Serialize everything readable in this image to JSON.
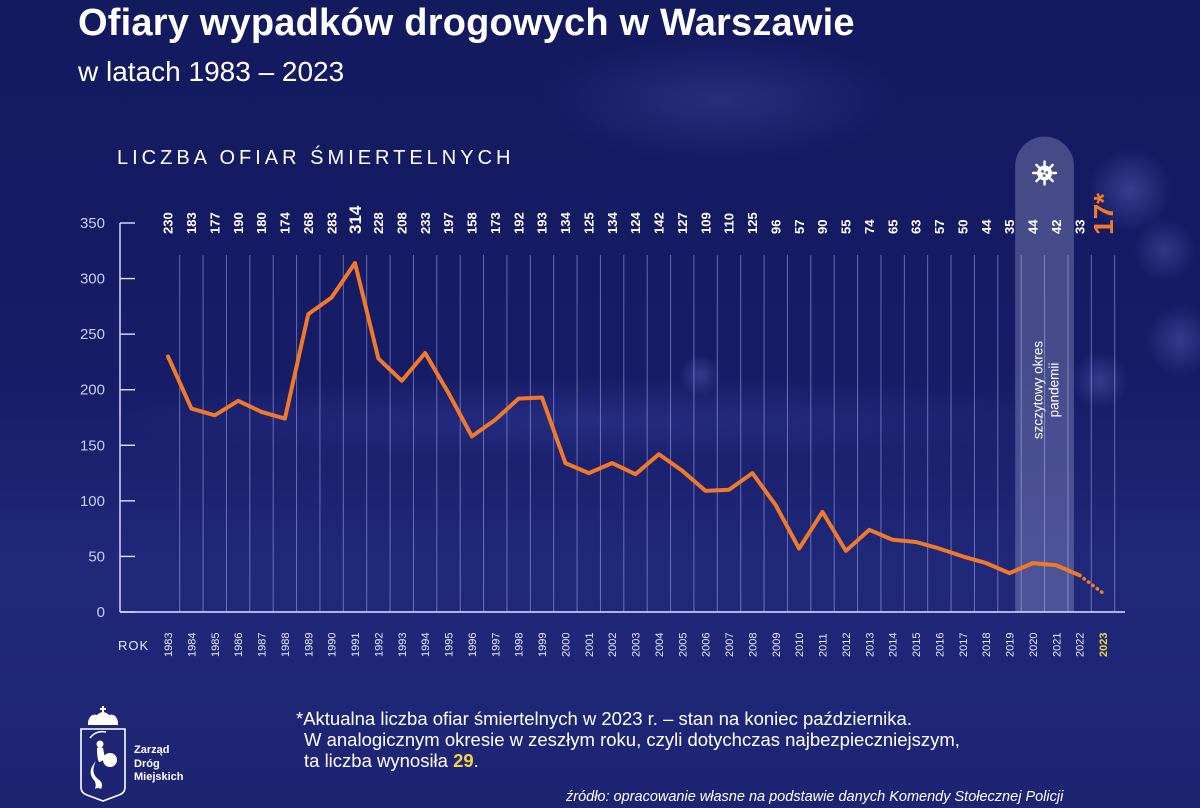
{
  "header": {
    "title": "Ofiary wypadków drogowych w Warszawie",
    "subtitle": "w latach 1983 – 2023"
  },
  "chart_data": {
    "type": "line",
    "title": "Ofiary wypadków drogowych w Warszawie",
    "subtitle": "w latach 1983 – 2023",
    "ylabel": "LICZBA OFIAR ŚMIERTELNYCH",
    "xlabel": "ROK",
    "ylim": [
      0,
      350
    ],
    "yticks": [
      0,
      50,
      100,
      150,
      200,
      250,
      300,
      350
    ],
    "grid": "vertical",
    "series": [
      {
        "name": "Liczba ofiar śmiertelnych",
        "color": "#f07a2a",
        "x": [
          1983,
          1984,
          1985,
          1986,
          1987,
          1988,
          1989,
          1990,
          1991,
          1992,
          1993,
          1994,
          1995,
          1996,
          1997,
          1998,
          1999,
          2000,
          2001,
          2002,
          2003,
          2004,
          2005,
          2006,
          2007,
          2008,
          2009,
          2010,
          2011,
          2012,
          2013,
          2014,
          2015,
          2016,
          2017,
          2018,
          2019,
          2020,
          2021,
          2022,
          2023
        ],
        "values": [
          230,
          183,
          177,
          190,
          180,
          174,
          268,
          283,
          314,
          228,
          208,
          233,
          197,
          158,
          173,
          192,
          193,
          134,
          125,
          134,
          124,
          142,
          127,
          109,
          110,
          125,
          96,
          57,
          90,
          55,
          74,
          65,
          63,
          57,
          50,
          44,
          35,
          44,
          42,
          33,
          17
        ],
        "value_labels": [
          "230",
          "183",
          "177",
          "190",
          "180",
          "174",
          "268",
          "283",
          "314",
          "228",
          "208",
          "233",
          "197",
          "158",
          "173",
          "192",
          "193",
          "134",
          "125",
          "134",
          "124",
          "142",
          "127",
          "109",
          "110",
          "125",
          "96",
          "57",
          "90",
          "55",
          "74",
          "65",
          "63",
          "57",
          "50",
          "44",
          "35",
          "44",
          "42",
          "33",
          "17*"
        ],
        "dashed_last_segment": true
      }
    ],
    "highlight_max": {
      "year": 1991,
      "value": 314
    },
    "highlight_last": {
      "year": 2023,
      "label": "17*",
      "color": "#f07a2a",
      "year_color": "#f2d24b"
    },
    "annotation": {
      "label": "szczytowy okres pandemii",
      "line1": "szczytowy okres",
      "line2": "pandemii",
      "years": [
        2020,
        2021
      ],
      "icon": "virus-icon"
    }
  },
  "footnote": {
    "line1": "*Aktualna liczba ofiar śmiertelnych w 2023 r. – stan na koniec października.",
    "line2": "W analogicznym okresie w zeszłym roku, czyli dotychczas najbezpieczniejszym,",
    "line3_prefix": "ta liczba wynosiła ",
    "line3_value": "29",
    "line3_suffix": "."
  },
  "source": "źródło: opracowanie własne na podstawie danych Komendy Stołecznej Policji",
  "logo": {
    "icon": "warsaw-mermaid-crest-icon",
    "line1": "Zarząd",
    "line2": "Dróg",
    "line3": "Miejskich"
  },
  "colors": {
    "background": "#161c66",
    "line": "#f07a2a",
    "highlight_year": "#f2d24b",
    "footnote_highlight": "#f2d24b",
    "pandemic_band": "#6a6f9a"
  }
}
